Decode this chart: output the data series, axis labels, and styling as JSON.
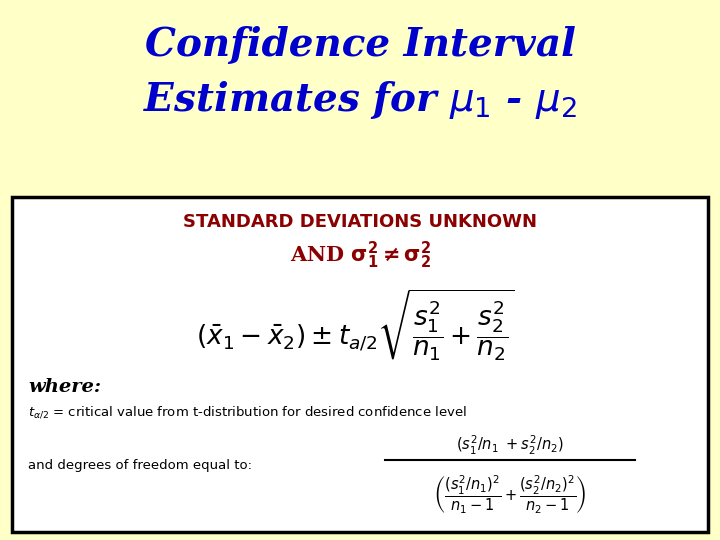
{
  "title_line1": "Confidence Interval",
  "title_line2": "Estimates for $\\mu_1$ - $\\mu_2$",
  "title_color": "#0000CC",
  "title_bg_color": "#FFFFC8",
  "box_bg_color": "#FFFFFF",
  "heading1": "STANDARD DEVIATIONS UNKNOWN",
  "heading2_pre": "AND ",
  "heading_color": "#8B0000",
  "where_text": "where:",
  "talpha_label": "$t_{\\alpha/2}$",
  "talpha_desc": " = critical value from t-distribution for desired confidence level",
  "degrees_label": "and degrees of freedom equal to:",
  "figsize": [
    7.2,
    5.4
  ],
  "dpi": 100
}
